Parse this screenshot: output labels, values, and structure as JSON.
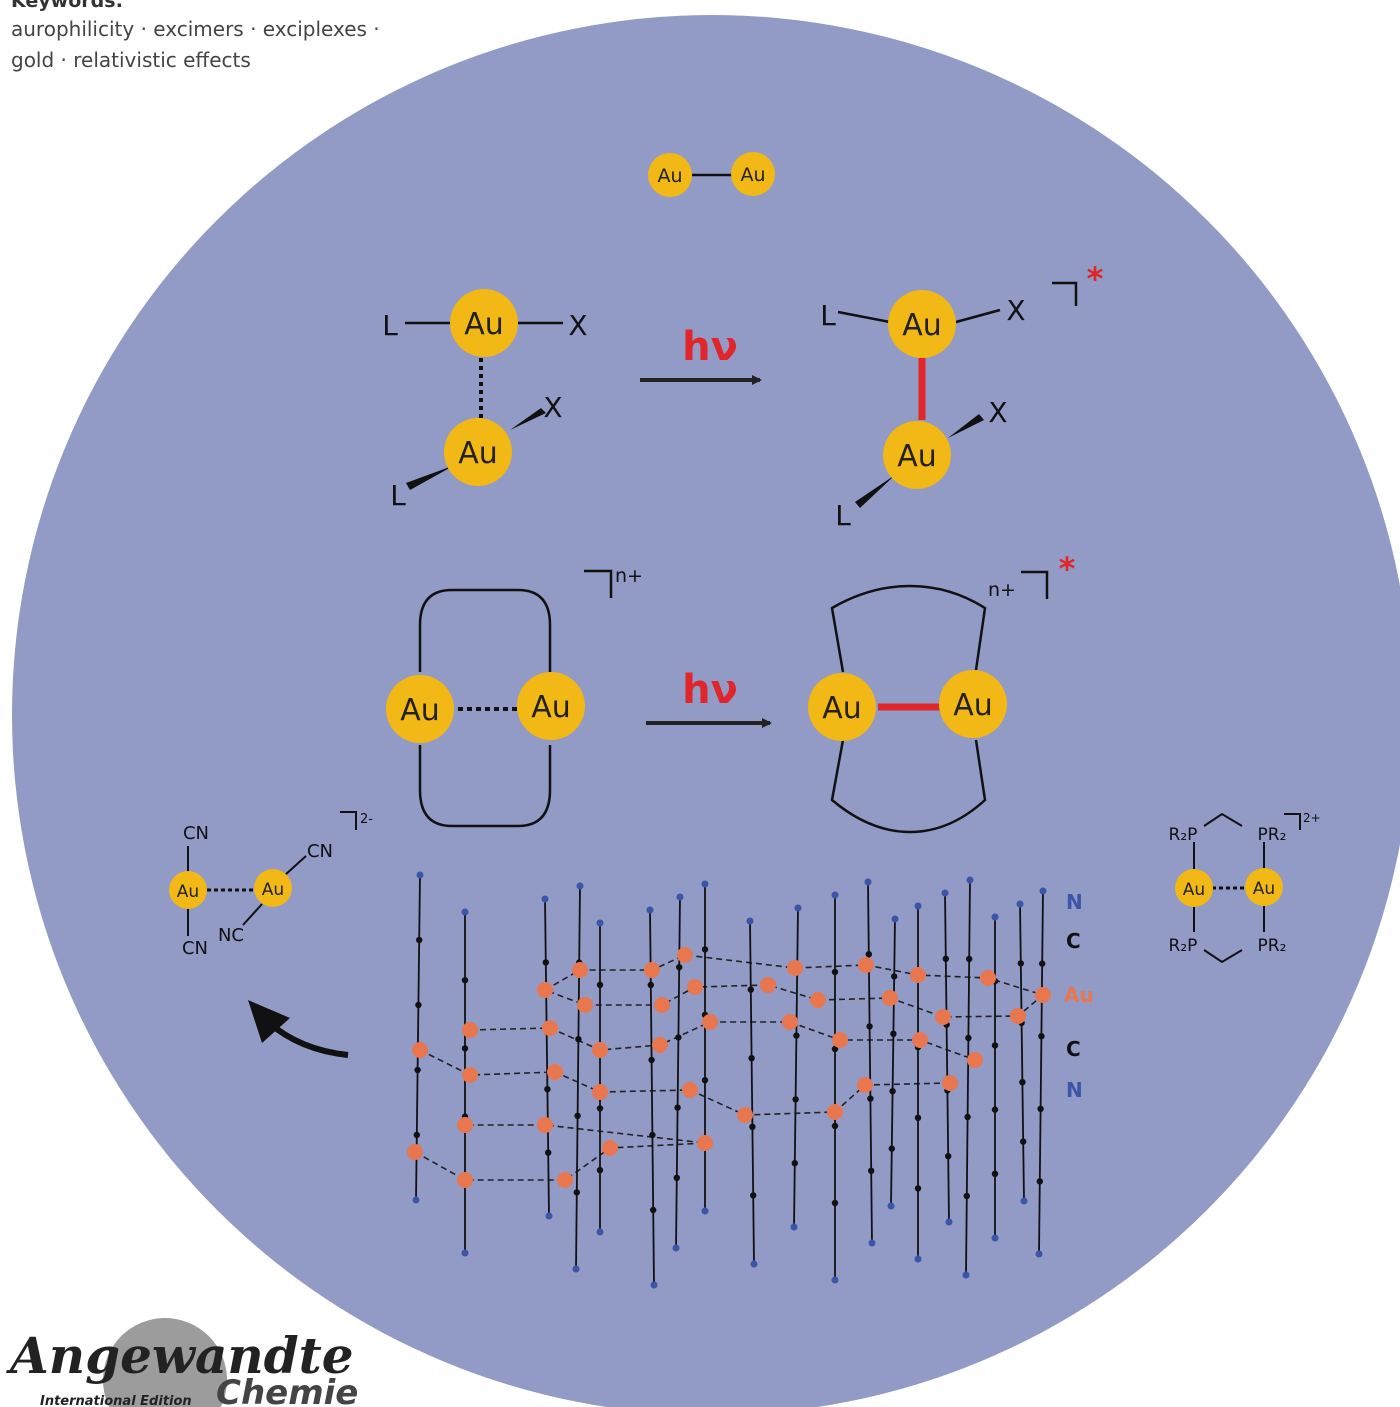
{
  "keywords": {
    "heading": "Keywords:",
    "line1": "aurophilicity · excimers · exciplexes ·",
    "line2": "gold · relativistic effects"
  },
  "figure": {
    "au_symbol": "Au",
    "ligand_L": "L",
    "ligand_X": "X",
    "light": "hν",
    "excited_star": "*",
    "charge_nplus": "n+",
    "charge_2minus": "2-",
    "charge_2plus": "2+",
    "cyanide_CN": "CN",
    "cyanide_NC": "NC",
    "phosphine_R2P": "R₂P",
    "phosphine_PR2": "PR₂",
    "lattice_legend": [
      "N",
      "C",
      "Au",
      "C",
      "N"
    ]
  },
  "logo": {
    "name": "Angewandte",
    "subtitle": "International Edition",
    "chemie": "Chemie"
  },
  "colors": {
    "disc": "#929AC6",
    "gold": "#F2B815",
    "bond_red": "#E0262A",
    "lattice_au": "#E8774F",
    "lattice_n": "#3B55A8"
  }
}
